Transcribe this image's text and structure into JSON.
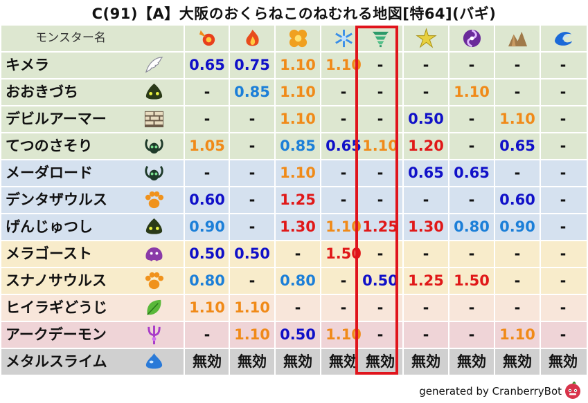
{
  "title": "C(91)【A】大阪のおくらねこのねむれる地図[特64](バギ)",
  "header": {
    "name_col": "モンスター名",
    "elements": [
      {
        "id": "mera",
        "icon": "fireball-icon"
      },
      {
        "id": "gira",
        "icon": "flame-icon"
      },
      {
        "id": "io",
        "icon": "explosion-icon"
      },
      {
        "id": "hyado",
        "icon": "snowflake-icon"
      },
      {
        "id": "bagi",
        "icon": "tornado-icon"
      },
      {
        "id": "dein",
        "icon": "lightning-icon"
      },
      {
        "id": "doruma",
        "icon": "dark-vortex-icon"
      },
      {
        "id": "jibarigu",
        "icon": "rock-spikes-icon"
      },
      {
        "id": "dein2",
        "icon": "water-wave-icon"
      }
    ]
  },
  "rows": [
    {
      "name": "キメラ",
      "type_icon": "wing-icon",
      "bg": "#dde7d0",
      "cells": [
        "0.65",
        "0.75",
        "1.10",
        "1.10",
        "-",
        "-",
        "-",
        "-",
        "-"
      ]
    },
    {
      "name": "おおきづち",
      "type_icon": "slime-green-icon",
      "bg": "#dde7d0",
      "cells": [
        "-",
        "0.85",
        "1.10",
        "-",
        "-",
        "-",
        "1.10",
        "-",
        "-"
      ]
    },
    {
      "name": "デビルアーマー",
      "type_icon": "brick-icon",
      "bg": "#dde7d0",
      "cells": [
        "-",
        "-",
        "1.10",
        "-",
        "-",
        "0.50",
        "-",
        "1.10",
        "-"
      ]
    },
    {
      "name": "てつのさそり",
      "type_icon": "insect-icon",
      "bg": "#dde7d0",
      "cells": [
        "1.05",
        "-",
        "0.85",
        "0.65",
        "1.10",
        "1.20",
        "-",
        "0.65",
        "-"
      ]
    },
    {
      "name": "メーダロード",
      "type_icon": "insect-icon",
      "bg": "#d5e1ef",
      "cells": [
        "-",
        "-",
        "1.10",
        "-",
        "-",
        "0.65",
        "0.65",
        "-",
        "-"
      ]
    },
    {
      "name": "デンタザウルス",
      "type_icon": "paw-icon",
      "bg": "#d5e1ef",
      "cells": [
        "0.60",
        "-",
        "1.25",
        "-",
        "-",
        "-",
        "-",
        "0.60",
        "-"
      ]
    },
    {
      "name": "げんじゅつし",
      "type_icon": "slime-green-icon",
      "bg": "#d5e1ef",
      "cells": [
        "0.90",
        "-",
        "1.30",
        "1.10",
        "1.25",
        "1.30",
        "0.80",
        "0.90",
        "-"
      ]
    },
    {
      "name": "メラゴースト",
      "type_icon": "ghost-icon",
      "bg": "#f8eccb",
      "cells": [
        "0.50",
        "0.50",
        "-",
        "1.50",
        "-",
        "-",
        "-",
        "-",
        "-"
      ]
    },
    {
      "name": "スナノサウルス",
      "type_icon": "paw-icon",
      "bg": "#f8eccb",
      "cells": [
        "0.80",
        "-",
        "0.80",
        "-",
        "0.50",
        "1.25",
        "1.50",
        "-",
        "-"
      ]
    },
    {
      "name": "ヒイラギどうじ",
      "type_icon": "leaf-icon",
      "bg": "#f8e6da",
      "cells": [
        "1.10",
        "1.10",
        "-",
        "-",
        "-",
        "-",
        "-",
        "-",
        "-"
      ]
    },
    {
      "name": "アークデーモン",
      "type_icon": "trident-icon",
      "bg": "#efd4d7",
      "cells": [
        "-",
        "1.10",
        "0.50",
        "1.10",
        "-",
        "-",
        "-",
        "1.10",
        "-"
      ]
    },
    {
      "name": "メタルスライム",
      "type_icon": "blue-slime-icon",
      "bg": "#d0d0d0",
      "cells": [
        "無効",
        "無効",
        "無効",
        "無効",
        "無効",
        "無効",
        "無効",
        "無効",
        "無効"
      ]
    }
  ],
  "colors": {
    "header_bg": "#dde7d0",
    "highlight": "#e0141c",
    "low_resist": "#1010c8",
    "mid_resist": "#1c7fd8",
    "weak": "#f08a18",
    "very_weak": "#e01818",
    "neutral": "#111111"
  },
  "footer": {
    "credit": "generated by CranberryBot",
    "bot_icon": "cranberry-bot-icon"
  }
}
